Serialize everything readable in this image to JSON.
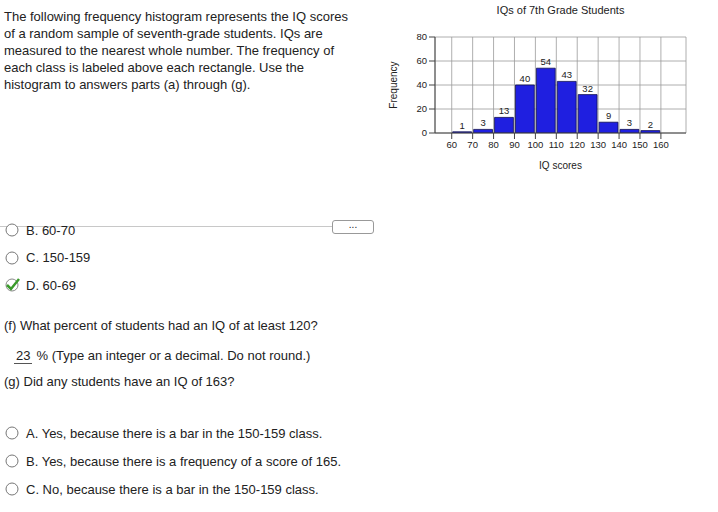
{
  "intro": "The following frequency histogram represents the IQ scores of a random sample of seventh-grade students. IQs are measured to the nearest whole number. The frequency of each class is labeled above each rectangle. Use the histogram to answers parts (a) through (g).",
  "expand_button": "...",
  "part_e_options": [
    {
      "text": "B. 60-70",
      "checked": false
    },
    {
      "text": "C. 150-159",
      "checked": false
    },
    {
      "text": "D. 60-69",
      "checked": true
    }
  ],
  "part_f": {
    "prompt": "(f) What percent of students had an IQ of at least 120?",
    "answer": 23,
    "hint": "% (Type an integer or a decimal. Do not round.)"
  },
  "part_g": {
    "prompt": "(g) Did any students have an IQ of 163?",
    "options": [
      {
        "text": "A. Yes, because there is a bar in the 150-159 class.",
        "checked": false
      },
      {
        "text": "B. Yes, because there is a frequency of a score of 165.",
        "checked": false
      },
      {
        "text": "C. No, because there is a bar in the 150-159 class.",
        "checked": false
      }
    ]
  },
  "chart_data": {
    "type": "histogram",
    "title": "IQs of 7th Grade Students",
    "x_label": "IQ scores",
    "y_label": "Frequency",
    "bins": [
      60,
      70,
      80,
      90,
      100,
      110,
      120,
      130,
      140,
      150,
      160
    ],
    "values": [
      1,
      3,
      13,
      40,
      54,
      43,
      32,
      9,
      3,
      2
    ],
    "color": "#1f1fe0",
    "xlim": [
      52,
      172
    ],
    "ylim": [
      0,
      80
    ],
    "xticks": [
      60,
      70,
      80,
      90,
      100,
      110,
      120,
      130,
      140,
      150,
      160
    ],
    "yticks": [
      0,
      20,
      40,
      60,
      80
    ],
    "grid": true,
    "data_labels": true
  }
}
